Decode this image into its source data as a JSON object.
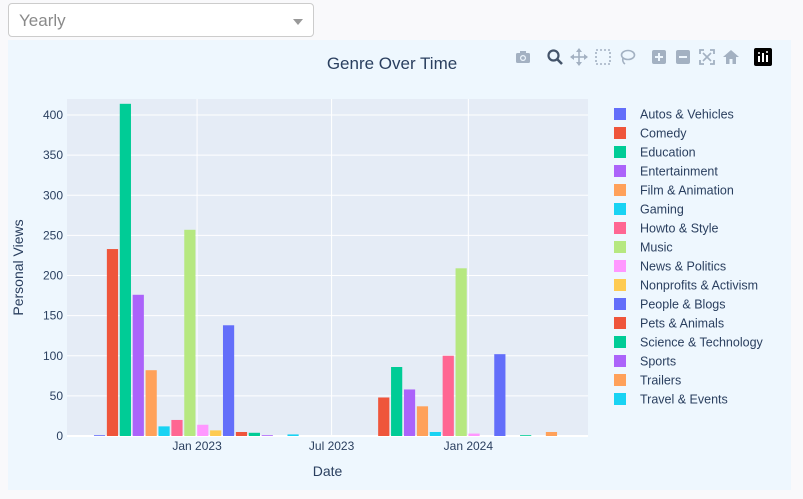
{
  "dropdown": {
    "value": "Yearly"
  },
  "modebar": {
    "icons": [
      "camera-icon",
      "zoom-icon",
      "pan-icon",
      "box-select-icon",
      "lasso-select-icon",
      "zoom-in-icon",
      "zoom-out-icon",
      "autoscale-icon",
      "reset-axes-icon",
      "plotly-logo-icon"
    ]
  },
  "colors": {
    "panel": "#eef7fe",
    "plot_bg": "#e5ecf6",
    "grid": "#ffffff",
    "text": "#2a3f5f"
  },
  "chart_data": {
    "type": "bar",
    "title": "Genre Over Time",
    "xlabel": "Date",
    "ylabel": "Personal Views",
    "ylim": [
      0,
      420
    ],
    "yticks": [
      0,
      50,
      100,
      150,
      200,
      250,
      300,
      350,
      400
    ],
    "xticks": [
      {
        "label": "Jan 2023",
        "date": "2023-01-01"
      },
      {
        "label": "Jul 2023",
        "date": "2023-07-01"
      },
      {
        "label": "Jan 2024",
        "date": "2024-01-01"
      }
    ],
    "xlim": [
      "2022-07-10",
      "2024-06-10"
    ],
    "groups": [
      {
        "center": "2022-12-31"
      },
      {
        "center": "2023-12-31"
      }
    ],
    "grid": true,
    "legend_position": "right",
    "series": [
      {
        "name": "Autos & Vehicles",
        "color": "#636efa",
        "values": [
          1,
          0
        ]
      },
      {
        "name": "Comedy",
        "color": "#EF553B",
        "values": [
          233,
          48
        ]
      },
      {
        "name": "Education",
        "color": "#00cc96",
        "values": [
          414,
          86
        ]
      },
      {
        "name": "Entertainment",
        "color": "#ab63fa",
        "values": [
          176,
          58
        ]
      },
      {
        "name": "Film & Animation",
        "color": "#FFA15A",
        "values": [
          82,
          37
        ]
      },
      {
        "name": "Gaming",
        "color": "#19d3f3",
        "values": [
          12,
          5
        ]
      },
      {
        "name": "Howto & Style",
        "color": "#FF6692",
        "values": [
          20,
          100
        ]
      },
      {
        "name": "Music",
        "color": "#B6E880",
        "values": [
          257,
          209
        ]
      },
      {
        "name": "News & Politics",
        "color": "#FF97FF",
        "values": [
          14,
          3
        ]
      },
      {
        "name": "Nonprofits & Activism",
        "color": "#FECB52",
        "values": [
          7,
          0
        ]
      },
      {
        "name": "People & Blogs",
        "color": "#636efa",
        "values": [
          138,
          102
        ]
      },
      {
        "name": "Pets & Animals",
        "color": "#EF553B",
        "values": [
          5,
          0
        ]
      },
      {
        "name": "Science & Technology",
        "color": "#00cc96",
        "values": [
          4,
          1
        ]
      },
      {
        "name": "Sports",
        "color": "#ab63fa",
        "values": [
          1,
          0
        ]
      },
      {
        "name": "Trailers",
        "color": "#FFA15A",
        "values": [
          0,
          5
        ]
      },
      {
        "name": "Travel & Events",
        "color": "#19d3f3",
        "values": [
          2,
          0
        ]
      }
    ]
  }
}
